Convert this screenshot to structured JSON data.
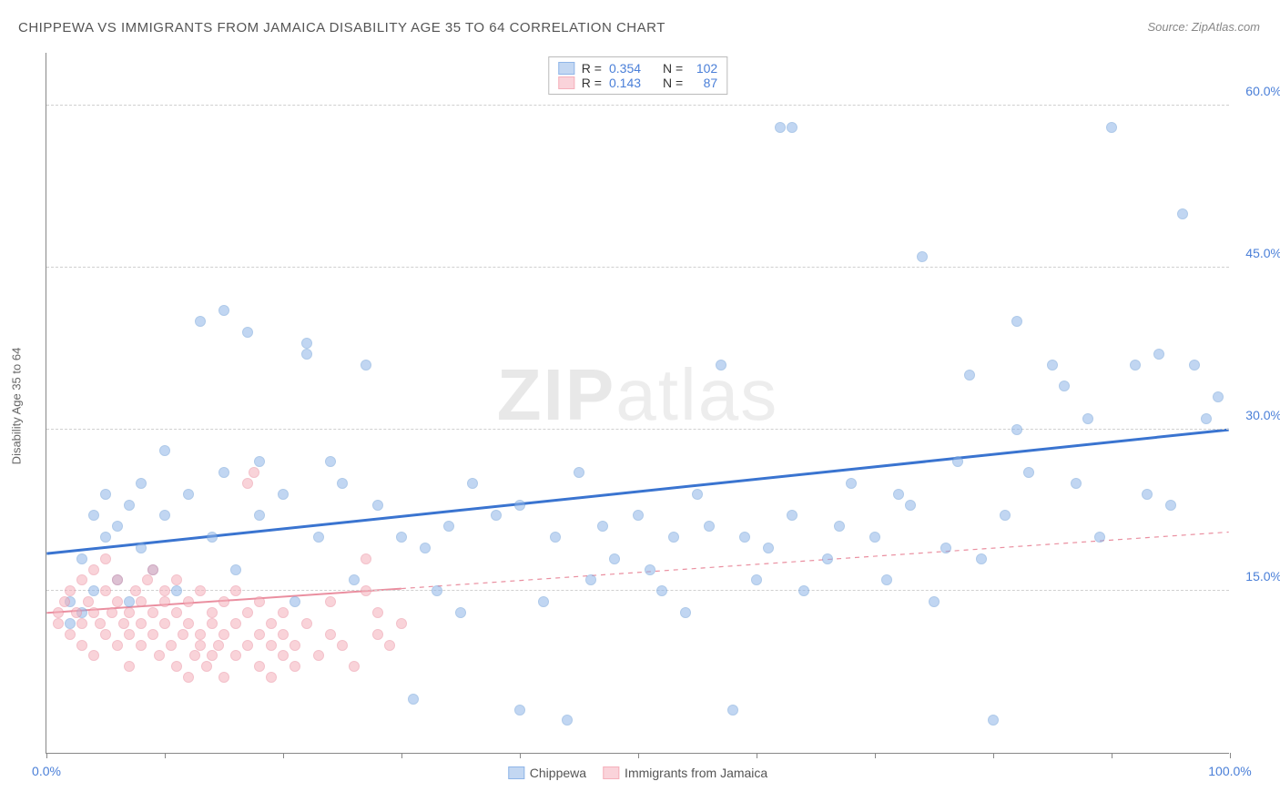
{
  "title": "CHIPPEWA VS IMMIGRANTS FROM JAMAICA DISABILITY AGE 35 TO 64 CORRELATION CHART",
  "source": "Source: ZipAtlas.com",
  "y_axis_label": "Disability Age 35 to 64",
  "watermark": {
    "left": "ZIP",
    "right": "atlas"
  },
  "chart": {
    "type": "scatter",
    "xlim": [
      0,
      100
    ],
    "ylim": [
      0,
      65
    ],
    "x_ticks": [
      0,
      10,
      20,
      30,
      40,
      50,
      60,
      70,
      80,
      90,
      100
    ],
    "x_tick_labels": {
      "0": "0.0%",
      "100": "100.0%"
    },
    "y_gridlines": [
      15,
      30,
      45,
      60
    ],
    "y_tick_labels": {
      "15": "15.0%",
      "30": "30.0%",
      "45": "45.0%",
      "60": "60.0%"
    },
    "background_color": "#ffffff",
    "grid_color": "#d0d0d0",
    "axis_color": "#888888",
    "label_color": "#4a7fd8",
    "marker_size": 12,
    "marker_opacity": 0.55,
    "series": [
      {
        "name": "Chippewa",
        "color": "#8fb5e8",
        "border_color": "#6e9fd8",
        "trend": {
          "color": "#3a74d0",
          "width": 3,
          "style": "solid",
          "y_at_x0": 18.5,
          "y_at_x100": 30.0
        },
        "points": [
          [
            2,
            12
          ],
          [
            2,
            14
          ],
          [
            3,
            13
          ],
          [
            3,
            18
          ],
          [
            4,
            22
          ],
          [
            4,
            15
          ],
          [
            5,
            20
          ],
          [
            5,
            24
          ],
          [
            6,
            16
          ],
          [
            6,
            21
          ],
          [
            7,
            14
          ],
          [
            7,
            23
          ],
          [
            8,
            19
          ],
          [
            8,
            25
          ],
          [
            9,
            17
          ],
          [
            10,
            22
          ],
          [
            10,
            28
          ],
          [
            11,
            15
          ],
          [
            12,
            24
          ],
          [
            13,
            40
          ],
          [
            14,
            20
          ],
          [
            15,
            26
          ],
          [
            15,
            41
          ],
          [
            16,
            17
          ],
          [
            17,
            39
          ],
          [
            18,
            22
          ],
          [
            18,
            27
          ],
          [
            20,
            24
          ],
          [
            21,
            14
          ],
          [
            22,
            37
          ],
          [
            22,
            38
          ],
          [
            23,
            20
          ],
          [
            24,
            27
          ],
          [
            25,
            25
          ],
          [
            26,
            16
          ],
          [
            27,
            36
          ],
          [
            28,
            23
          ],
          [
            30,
            20
          ],
          [
            31,
            5
          ],
          [
            32,
            19
          ],
          [
            33,
            15
          ],
          [
            34,
            21
          ],
          [
            35,
            13
          ],
          [
            36,
            25
          ],
          [
            38,
            22
          ],
          [
            40,
            23
          ],
          [
            40,
            4
          ],
          [
            42,
            14
          ],
          [
            43,
            20
          ],
          [
            44,
            3
          ],
          [
            45,
            26
          ],
          [
            46,
            16
          ],
          [
            47,
            21
          ],
          [
            48,
            18
          ],
          [
            50,
            22
          ],
          [
            51,
            17
          ],
          [
            52,
            15
          ],
          [
            53,
            20
          ],
          [
            54,
            13
          ],
          [
            55,
            24
          ],
          [
            56,
            21
          ],
          [
            57,
            36
          ],
          [
            58,
            4
          ],
          [
            59,
            20
          ],
          [
            60,
            16
          ],
          [
            61,
            19
          ],
          [
            62,
            58
          ],
          [
            63,
            58
          ],
          [
            63,
            22
          ],
          [
            64,
            15
          ],
          [
            66,
            18
          ],
          [
            67,
            21
          ],
          [
            68,
            25
          ],
          [
            70,
            20
          ],
          [
            71,
            16
          ],
          [
            72,
            24
          ],
          [
            73,
            23
          ],
          [
            74,
            46
          ],
          [
            75,
            14
          ],
          [
            76,
            19
          ],
          [
            77,
            27
          ],
          [
            78,
            35
          ],
          [
            79,
            18
          ],
          [
            80,
            3
          ],
          [
            81,
            22
          ],
          [
            82,
            40
          ],
          [
            82,
            30
          ],
          [
            83,
            26
          ],
          [
            85,
            36
          ],
          [
            86,
            34
          ],
          [
            87,
            25
          ],
          [
            88,
            31
          ],
          [
            89,
            20
          ],
          [
            90,
            58
          ],
          [
            92,
            36
          ],
          [
            93,
            24
          ],
          [
            94,
            37
          ],
          [
            95,
            23
          ],
          [
            96,
            50
          ],
          [
            97,
            36
          ],
          [
            98,
            31
          ],
          [
            99,
            33
          ]
        ]
      },
      {
        "name": "Immigrants from Jamaica",
        "color": "#f5b0bb",
        "border_color": "#ea8fa0",
        "trend": {
          "color": "#ea8fa0",
          "width": 2,
          "style": "solid",
          "y_at_x0": 13.0,
          "solid_until_x": 30,
          "dash_after": true,
          "y_at_x100": 20.5
        },
        "points": [
          [
            1,
            13
          ],
          [
            1,
            12
          ],
          [
            1.5,
            14
          ],
          [
            2,
            11
          ],
          [
            2,
            15
          ],
          [
            2.5,
            13
          ],
          [
            3,
            12
          ],
          [
            3,
            16
          ],
          [
            3,
            10
          ],
          [
            3.5,
            14
          ],
          [
            4,
            13
          ],
          [
            4,
            17
          ],
          [
            4,
            9
          ],
          [
            4.5,
            12
          ],
          [
            5,
            15
          ],
          [
            5,
            11
          ],
          [
            5,
            18
          ],
          [
            5.5,
            13
          ],
          [
            6,
            14
          ],
          [
            6,
            10
          ],
          [
            6,
            16
          ],
          [
            6.5,
            12
          ],
          [
            7,
            11
          ],
          [
            7,
            13
          ],
          [
            7,
            8
          ],
          [
            7.5,
            15
          ],
          [
            8,
            12
          ],
          [
            8,
            14
          ],
          [
            8,
            10
          ],
          [
            8.5,
            16
          ],
          [
            9,
            13
          ],
          [
            9,
            11
          ],
          [
            9,
            17
          ],
          [
            9.5,
            9
          ],
          [
            10,
            14
          ],
          [
            10,
            12
          ],
          [
            10,
            15
          ],
          [
            10.5,
            10
          ],
          [
            11,
            13
          ],
          [
            11,
            8
          ],
          [
            11,
            16
          ],
          [
            11.5,
            11
          ],
          [
            12,
            14
          ],
          [
            12,
            7
          ],
          [
            12,
            12
          ],
          [
            12.5,
            9
          ],
          [
            13,
            10
          ],
          [
            13,
            11
          ],
          [
            13,
            15
          ],
          [
            13.5,
            8
          ],
          [
            14,
            13
          ],
          [
            14,
            9
          ],
          [
            14,
            12
          ],
          [
            14.5,
            10
          ],
          [
            15,
            7
          ],
          [
            15,
            14
          ],
          [
            15,
            11
          ],
          [
            16,
            9
          ],
          [
            16,
            12
          ],
          [
            16,
            15
          ],
          [
            17,
            10
          ],
          [
            17,
            13
          ],
          [
            17,
            25
          ],
          [
            17.5,
            26
          ],
          [
            18,
            11
          ],
          [
            18,
            8
          ],
          [
            18,
            14
          ],
          [
            19,
            10
          ],
          [
            19,
            7
          ],
          [
            19,
            12
          ],
          [
            20,
            9
          ],
          [
            20,
            11
          ],
          [
            20,
            13
          ],
          [
            21,
            8
          ],
          [
            21,
            10
          ],
          [
            22,
            12
          ],
          [
            23,
            9
          ],
          [
            24,
            11
          ],
          [
            24,
            14
          ],
          [
            25,
            10
          ],
          [
            26,
            8
          ],
          [
            27,
            15
          ],
          [
            27,
            18
          ],
          [
            28,
            11
          ],
          [
            28,
            13
          ],
          [
            29,
            10
          ],
          [
            30,
            12
          ]
        ]
      }
    ],
    "stats_legend": {
      "rows": [
        {
          "swatch_fill": "#c3d7f2",
          "swatch_border": "#8fb5e8",
          "r_label": "R =",
          "r": "0.354",
          "n_label": "N =",
          "n": "102"
        },
        {
          "swatch_fill": "#fad3da",
          "swatch_border": "#f5b0bb",
          "r_label": "R =",
          "r": "0.143",
          "n_label": "N =",
          "n": "87"
        }
      ]
    },
    "bottom_legend": [
      {
        "swatch_fill": "#c3d7f2",
        "swatch_border": "#8fb5e8",
        "label": "Chippewa"
      },
      {
        "swatch_fill": "#fad3da",
        "swatch_border": "#f5b0bb",
        "label": "Immigrants from Jamaica"
      }
    ]
  }
}
